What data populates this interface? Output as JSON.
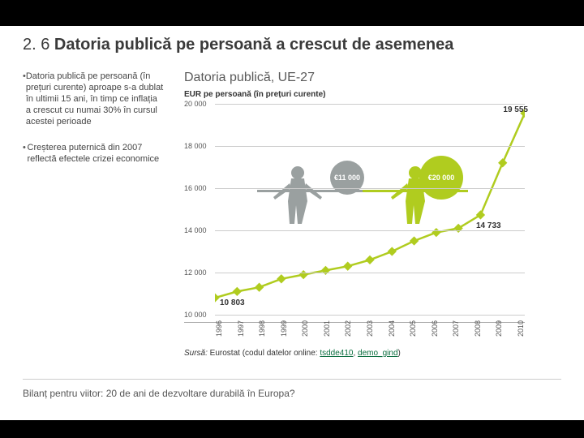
{
  "title_prefix": "2. 6 ",
  "title_bold": "Datoria publică pe persoană a crescut de asemenea",
  "bullets": [
    "Datoria publică pe persoană (în prețuri curente) aproape s-a dublat în ultimii 15 ani, în timp ce inflația a crescut cu numai 30% în cursul acestei perioade",
    "Creșterea puternică din 2007 reflectă efectele crizei economice"
  ],
  "chart": {
    "title": "Datoria publică, UE-27",
    "subtitle": "EUR pe persoană (în prețuri curente)",
    "line_color": "#b0cc1f",
    "marker_color": "#b0cc1f",
    "grid_color": "#ccc",
    "bg_color": "#ffffff",
    "y_min": 10000,
    "y_max": 20000,
    "y_ticks": [
      10000,
      12000,
      14000,
      16000,
      18000,
      20000
    ],
    "y_tick_labels": [
      "10 000",
      "12 000",
      "14 000",
      "16 000",
      "18 000",
      "20 000"
    ],
    "x_labels": [
      "1996",
      "1997",
      "1998",
      "1999",
      "2000",
      "2001",
      "2002",
      "2003",
      "2004",
      "2005",
      "2006",
      "2007",
      "2008",
      "2009",
      "2010"
    ],
    "values": [
      10803,
      11100,
      11300,
      11700,
      11900,
      12100,
      12300,
      12600,
      13000,
      13500,
      13900,
      14100,
      14733,
      17200,
      19555
    ],
    "start_label": "10 803",
    "end_label": "19 555",
    "mid_label": "14 733",
    "badge1": {
      "text": "€11 000",
      "color": "#9aa0a0"
    },
    "badge2": {
      "text": "€20 000",
      "color": "#b0cc1f"
    }
  },
  "source_prefix": "Sursă:",
  "source_text": " Eurostat (codul datelor online: ",
  "source_link1": "tsdde410",
  "source_link2": "demo_gind",
  "source_close": ")",
  "footer": "Bilanț pentru viitor: 20 de ani de dezvoltare durabilă în Europa?"
}
